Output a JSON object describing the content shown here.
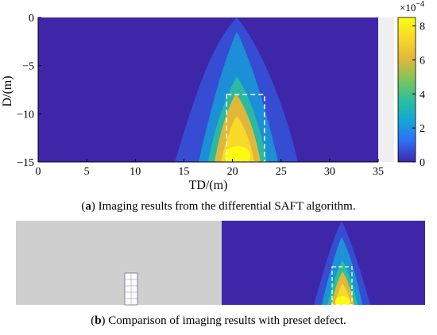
{
  "chart_data": [
    {
      "type": "heatmap",
      "caption_label": "a",
      "caption_text": "Imaging results from the differential SAFT algorithm.",
      "xlabel": "TD/(m)",
      "ylabel": "D/(m)",
      "xlim": [
        0,
        35
      ],
      "ylim": [
        -15,
        0
      ],
      "x_ticks": [
        "0",
        "5",
        "10",
        "15",
        "20",
        "25",
        "30",
        "35"
      ],
      "y_ticks": [
        "0",
        "−5",
        "−10",
        "−15"
      ],
      "colorbar": {
        "ticks": [
          "0",
          "2",
          "4",
          "6",
          "8"
        ],
        "tick_values": [
          0,
          2,
          4,
          6,
          8
        ],
        "max": 8.5,
        "exponent_label": "×10",
        "exponent_power": "−4",
        "colors": [
          "#3e26a8",
          "#2f6ef5",
          "#16a5d8",
          "#2bbf9b",
          "#80c45a",
          "#e0b73a",
          "#f9d92a",
          "#fbfb12"
        ]
      },
      "hotspot": {
        "x_center": 21,
        "depth_peak": -13.5,
        "peak_value": 8.3
      },
      "preset_defect": {
        "x": [
          19.4,
          23.3
        ],
        "y": [
          -15,
          -8
        ]
      },
      "grid": false
    },
    {
      "type": "heatmap",
      "caption_label": "b",
      "caption_text": "Comparison of imaging results with preset defect."
    }
  ],
  "colors": {
    "background_field": "#3e26a8",
    "defect_box": "#ffffff",
    "reference_panel": "#cfcfcf"
  }
}
